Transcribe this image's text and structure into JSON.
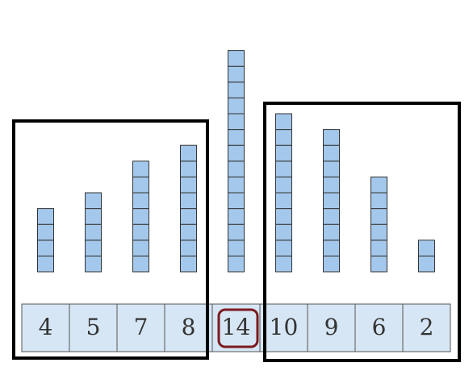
{
  "cells": [
    4,
    5,
    7,
    8,
    14,
    10,
    9,
    6,
    2
  ]
}
